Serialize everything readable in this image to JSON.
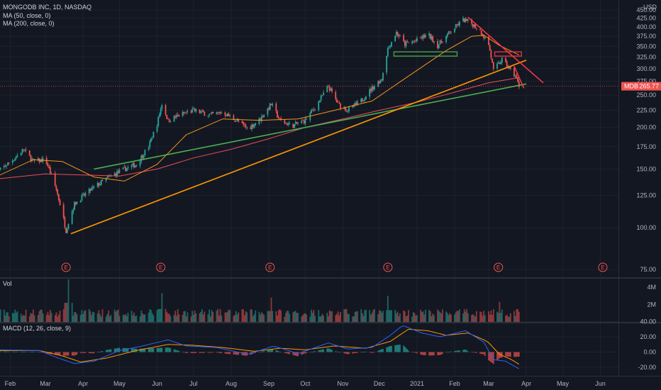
{
  "header": {
    "symbol_line": "MONGODB INC, 1D, NASDAQ",
    "ma50_label": "MA (50, close, 0)",
    "ma200_label": "MA (200, close, 0)",
    "currency": "USD"
  },
  "panes": {
    "volume_label": "Vol",
    "macd_label": "MACD (12, 26, close, 9)"
  },
  "colors": {
    "up": "#26a69a",
    "down": "#ef5350",
    "ma50": "#f7931a",
    "ma200": "#e94e58",
    "macd": "#2962ff",
    "signal": "#ff9800",
    "trend_green": "#4caf50",
    "trend_orange": "#ff9800",
    "trend_red": "#f23645"
  },
  "chart_data": [
    {
      "type": "candlestick",
      "title": "MONGODB INC, 1D, NASDAQ",
      "y_scale": "log",
      "ylim": [
        70,
        455
      ],
      "y_ticks": [
        75,
        100,
        125,
        150,
        175,
        200,
        225,
        250,
        275,
        300,
        325,
        350,
        375,
        400,
        425,
        450
      ],
      "y_tick_labels": [
        "75.00",
        "100.00",
        "125.00",
        "150.00",
        "175.00",
        "200.00",
        "225.00",
        "250.00",
        "275.00",
        "300.00",
        "325.00",
        "350.00",
        "375.00",
        "400.00",
        "425.00",
        "450.00"
      ],
      "x_ticks": [
        "Feb",
        "Mar",
        "Apr",
        "May",
        "Jun",
        "Jul",
        "Aug",
        "Sep",
        "Oct",
        "Nov",
        "Dec",
        "2021",
        "Feb",
        "Mar",
        "Apr",
        "May",
        "Jun"
      ],
      "last_price": {
        "symbol": "MDB",
        "value": "265.77"
      },
      "earnings_marker": "E",
      "earnings_dates": [
        "2020-03-18",
        "2020-06-04",
        "2020-09-02",
        "2020-12-08",
        "2021-03-09",
        "2021-06-03"
      ],
      "price_path": [
        [
          "2020-01-20",
          145
        ],
        [
          "2020-02-05",
          162
        ],
        [
          "2020-02-12",
          172
        ],
        [
          "2020-02-20",
          158
        ],
        [
          "2020-03-01",
          160
        ],
        [
          "2020-03-10",
          130
        ],
        [
          "2020-03-18",
          98
        ],
        [
          "2020-03-25",
          118
        ],
        [
          "2020-04-05",
          128
        ],
        [
          "2020-04-20",
          140
        ],
        [
          "2020-05-05",
          150
        ],
        [
          "2020-05-15",
          155
        ],
        [
          "2020-05-25",
          175
        ],
        [
          "2020-06-01",
          205
        ],
        [
          "2020-06-05",
          235
        ],
        [
          "2020-06-10",
          210
        ],
        [
          "2020-06-20",
          218
        ],
        [
          "2020-07-01",
          225
        ],
        [
          "2020-07-15",
          218
        ],
        [
          "2020-07-25",
          222
        ],
        [
          "2020-08-05",
          210
        ],
        [
          "2020-08-15",
          198
        ],
        [
          "2020-08-25",
          212
        ],
        [
          "2020-09-03",
          235
        ],
        [
          "2020-09-10",
          210
        ],
        [
          "2020-09-20",
          202
        ],
        [
          "2020-10-01",
          210
        ],
        [
          "2020-10-10",
          232
        ],
        [
          "2020-10-20",
          265
        ],
        [
          "2020-10-28",
          235
        ],
        [
          "2020-11-05",
          225
        ],
        [
          "2020-11-15",
          238
        ],
        [
          "2020-11-25",
          262
        ],
        [
          "2020-12-03",
          280
        ],
        [
          "2020-12-08",
          345
        ],
        [
          "2020-12-15",
          385
        ],
        [
          "2020-12-22",
          355
        ],
        [
          "2021-01-01",
          365
        ],
        [
          "2021-01-10",
          380
        ],
        [
          "2021-01-18",
          352
        ],
        [
          "2021-01-28",
          385
        ],
        [
          "2021-02-08",
          420
        ],
        [
          "2021-02-15",
          410
        ],
        [
          "2021-02-22",
          390
        ],
        [
          "2021-03-01",
          355
        ],
        [
          "2021-03-05",
          295
        ],
        [
          "2021-03-12",
          320
        ],
        [
          "2021-03-18",
          300
        ],
        [
          "2021-03-23",
          285
        ],
        [
          "2021-03-26",
          265.77
        ]
      ],
      "ma50_path": [
        [
          "2020-01-20",
          142
        ],
        [
          "2020-02-20",
          160
        ],
        [
          "2020-03-15",
          158
        ],
        [
          "2020-04-10",
          142
        ],
        [
          "2020-05-05",
          138
        ],
        [
          "2020-06-01",
          155
        ],
        [
          "2020-06-25",
          190
        ],
        [
          "2020-07-25",
          212
        ],
        [
          "2020-08-25",
          210
        ],
        [
          "2020-09-25",
          212
        ],
        [
          "2020-10-25",
          225
        ],
        [
          "2020-11-25",
          240
        ],
        [
          "2020-12-25",
          285
        ],
        [
          "2021-01-25",
          340
        ],
        [
          "2021-02-15",
          375
        ],
        [
          "2021-02-25",
          378
        ],
        [
          "2021-03-10",
          352
        ],
        [
          "2021-03-26",
          330
        ]
      ],
      "ma200_path": [
        [
          "2020-01-20",
          140
        ],
        [
          "2020-03-01",
          145
        ],
        [
          "2020-05-01",
          143
        ],
        [
          "2020-06-01",
          150
        ],
        [
          "2020-07-01",
          162
        ],
        [
          "2020-08-01",
          172
        ],
        [
          "2020-09-01",
          185
        ],
        [
          "2020-10-01",
          200
        ],
        [
          "2020-11-01",
          212
        ],
        [
          "2020-12-01",
          225
        ],
        [
          "2021-01-01",
          238
        ],
        [
          "2021-02-01",
          255
        ],
        [
          "2021-03-01",
          272
        ],
        [
          "2021-03-26",
          282
        ]
      ],
      "trendlines": [
        {
          "color": "trend_green",
          "from": [
            "2020-04-10",
            150
          ],
          "to": [
            "2021-04-01",
            270
          ]
        },
        {
          "color": "trend_orange",
          "from": [
            "2020-03-22",
            96
          ],
          "to": [
            "2021-04-01",
            318
          ]
        },
        {
          "color": "trend_red",
          "from": [
            "2021-02-12",
            428
          ],
          "to": [
            "2021-04-15",
            272
          ]
        },
        {
          "color": "trend_red",
          "from": [
            "2021-03-22",
            305
          ],
          "to": [
            "2021-03-30",
            262
          ]
        }
      ],
      "zones": [
        {
          "color": "trend_green",
          "from": [
            "2020-12-13",
            332
          ],
          "to": [
            "2021-02-03",
            332
          ]
        },
        {
          "color": "trend_red",
          "from": [
            "2021-03-06",
            332
          ],
          "to": [
            "2021-03-28",
            332
          ]
        }
      ]
    },
    {
      "type": "bar",
      "title": "Vol",
      "ylim": [
        0,
        5
      ],
      "y_ticks": [
        2,
        4
      ],
      "y_tick_labels": [
        "2M",
        "4M"
      ],
      "unit": "M",
      "spikes": [
        [
          "2020-03-20",
          4.9
        ],
        [
          "2020-06-05",
          3.3
        ],
        [
          "2020-09-03",
          2.8
        ],
        [
          "2020-12-08",
          3.0
        ],
        [
          "2021-03-10",
          2.3
        ]
      ]
    },
    {
      "type": "line",
      "title": "MACD (12, 26, close, 9)",
      "ylim": [
        -26,
        43
      ],
      "y_ticks": [
        40,
        20,
        0,
        -20
      ],
      "y_tick_labels": [
        "40.00",
        "20.00",
        "0.00",
        "-20.00"
      ],
      "macd_path": [
        [
          "2020-01-20",
          3
        ],
        [
          "2020-02-25",
          2
        ],
        [
          "2020-03-10",
          -7
        ],
        [
          "2020-03-25",
          -15
        ],
        [
          "2020-04-10",
          -12
        ],
        [
          "2020-05-01",
          2
        ],
        [
          "2020-05-20",
          8
        ],
        [
          "2020-06-10",
          16
        ],
        [
          "2020-06-25",
          8
        ],
        [
          "2020-07-20",
          6
        ],
        [
          "2020-08-15",
          -3
        ],
        [
          "2020-09-05",
          8
        ],
        [
          "2020-09-25",
          -2
        ],
        [
          "2020-10-20",
          12
        ],
        [
          "2020-11-05",
          4
        ],
        [
          "2020-11-25",
          6
        ],
        [
          "2020-12-10",
          22
        ],
        [
          "2020-12-20",
          35
        ],
        [
          "2021-01-05",
          25
        ],
        [
          "2021-01-20",
          20
        ],
        [
          "2021-02-10",
          28
        ],
        [
          "2021-02-25",
          13
        ],
        [
          "2021-03-05",
          -10
        ],
        [
          "2021-03-15",
          -12
        ],
        [
          "2021-03-26",
          -22
        ]
      ],
      "signal_path": [
        [
          "2020-01-20",
          2
        ],
        [
          "2020-02-25",
          2
        ],
        [
          "2020-03-15",
          -5
        ],
        [
          "2020-03-30",
          -13
        ],
        [
          "2020-04-20",
          -8
        ],
        [
          "2020-05-15",
          2
        ],
        [
          "2020-06-10",
          10
        ],
        [
          "2020-06-30",
          9
        ],
        [
          "2020-07-25",
          6
        ],
        [
          "2020-08-20",
          1
        ],
        [
          "2020-09-10",
          5
        ],
        [
          "2020-10-01",
          3
        ],
        [
          "2020-10-25",
          8
        ],
        [
          "2020-11-20",
          5
        ],
        [
          "2020-12-10",
          14
        ],
        [
          "2020-12-25",
          30
        ],
        [
          "2021-01-10",
          28
        ],
        [
          "2021-01-25",
          22
        ],
        [
          "2021-02-12",
          25
        ],
        [
          "2021-02-28",
          14
        ],
        [
          "2021-03-10",
          -3
        ],
        [
          "2021-03-20",
          -10
        ],
        [
          "2021-03-26",
          -16
        ]
      ]
    }
  ]
}
